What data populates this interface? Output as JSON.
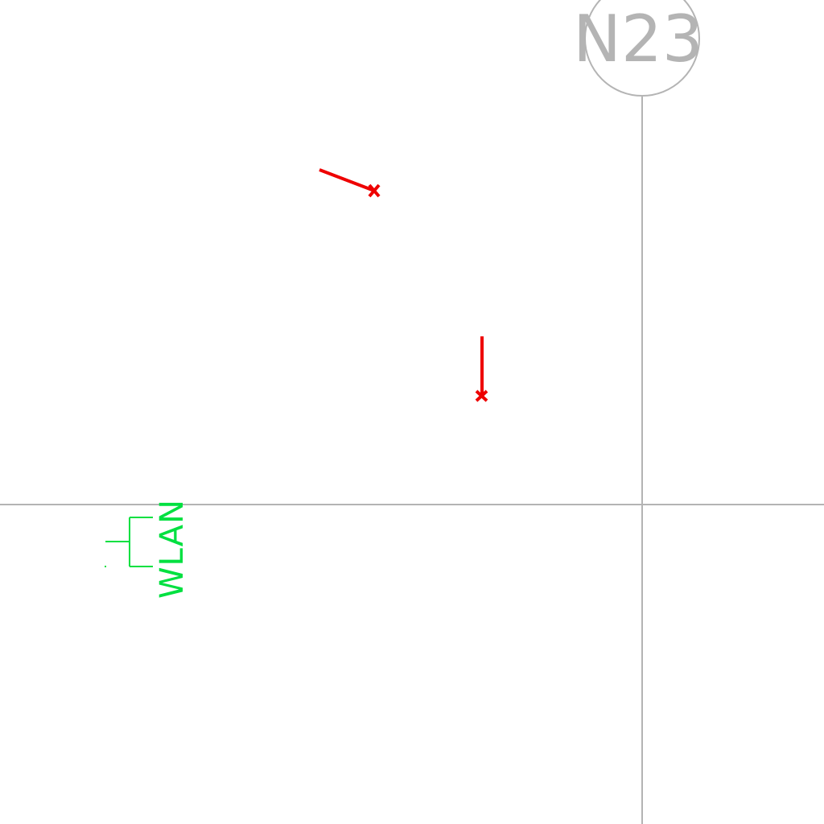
{
  "drawing": {
    "grid": {
      "label": "N23"
    },
    "symbols": {
      "wlan_outlet": {
        "label": "WLAN"
      },
      "fixtures": [
        {
          "name": "red-fixture-a"
        },
        {
          "name": "red-fixture-b"
        }
      ]
    }
  },
  "colors": {
    "grid": "#b4b4b4",
    "grid_label": "#b4b4b4",
    "fixture": "#ee0000",
    "wlan": "#00e040",
    "background": "#ffffff"
  }
}
